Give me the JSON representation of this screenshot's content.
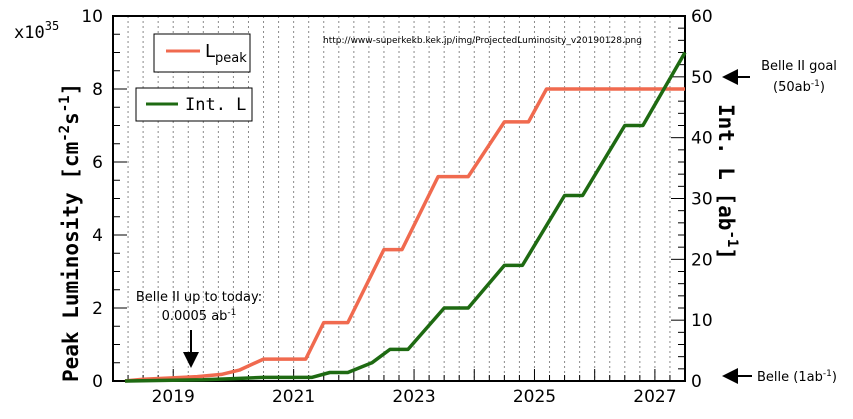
{
  "chart_data": {
    "type": "line",
    "x_range": [
      2018.0,
      2027.5
    ],
    "x_ticks": [
      "2019",
      "2021",
      "2023",
      "2025",
      "2027"
    ],
    "ylim_left": [
      0,
      10
    ],
    "yticks_left": [
      "0",
      "2",
      "4",
      "6",
      "8",
      "10"
    ],
    "ylim_right": [
      0,
      60
    ],
    "yticks_right": [
      "0",
      "10",
      "20",
      "30",
      "40",
      "50",
      "60"
    ],
    "ylabel_left": "Peak Luminosity [cm",
    "ylabel_left_sup1": "-2",
    "ylabel_left_mid": "s",
    "ylabel_left_sup2": "-1",
    "ylabel_left_end": "]",
    "ylabel_right": "Int. L [ab",
    "ylabel_right_sup": "-1",
    "ylabel_right_end": "]",
    "scale_note": "x10",
    "scale_exp": "35",
    "url_note": "http://www-superkekb.kek.jp/img/ProjectedLuminosity_v20190128.png",
    "grid": "vertical dashed",
    "legend_placement": "top-left",
    "series": [
      {
        "name_base": "L",
        "name_sub": "peak",
        "color": "#f06a4f",
        "axis": "left",
        "points": [
          [
            2018.2,
            0.0
          ],
          [
            2018.5,
            0.05
          ],
          [
            2018.9,
            0.08
          ],
          [
            2019.4,
            0.12
          ],
          [
            2019.8,
            0.18
          ],
          [
            2020.1,
            0.3
          ],
          [
            2020.5,
            0.6
          ],
          [
            2021.2,
            0.6
          ],
          [
            2021.5,
            1.6
          ],
          [
            2021.9,
            1.6
          ],
          [
            2022.5,
            3.6
          ],
          [
            2022.8,
            3.6
          ],
          [
            2023.4,
            5.6
          ],
          [
            2023.9,
            5.6
          ],
          [
            2024.5,
            7.1
          ],
          [
            2024.9,
            7.1
          ],
          [
            2025.2,
            8.0
          ],
          [
            2027.5,
            8.0
          ]
        ]
      },
      {
        "name": "Int. L",
        "color": "#1e6a12",
        "axis": "right",
        "points": [
          [
            2018.2,
            0.0
          ],
          [
            2019.5,
            0.2
          ],
          [
            2020.0,
            0.4
          ],
          [
            2020.5,
            0.6
          ],
          [
            2021.3,
            0.6
          ],
          [
            2021.6,
            1.4
          ],
          [
            2021.9,
            1.4
          ],
          [
            2022.3,
            3.0
          ],
          [
            2022.6,
            5.2
          ],
          [
            2022.9,
            5.2
          ],
          [
            2023.5,
            12.0
          ],
          [
            2023.9,
            12.0
          ],
          [
            2024.5,
            19.0
          ],
          [
            2024.8,
            19.0
          ],
          [
            2025.5,
            30.5
          ],
          [
            2025.8,
            30.5
          ],
          [
            2026.5,
            42.0
          ],
          [
            2026.8,
            42.0
          ],
          [
            2027.5,
            54.0
          ]
        ]
      }
    ],
    "annotations": {
      "belle_today_line1": "Belle II up to today:",
      "belle_today_line2": "0.0005 ab",
      "belle_today_sup": "-1",
      "belle_goal_line1": "Belle II goal",
      "belle_goal_line2": "(50ab",
      "belle_goal_sup": "-1",
      "belle_goal_end": ")",
      "belle": "Belle (1ab",
      "belle_sup": "-1",
      "belle_end": ")"
    }
  }
}
